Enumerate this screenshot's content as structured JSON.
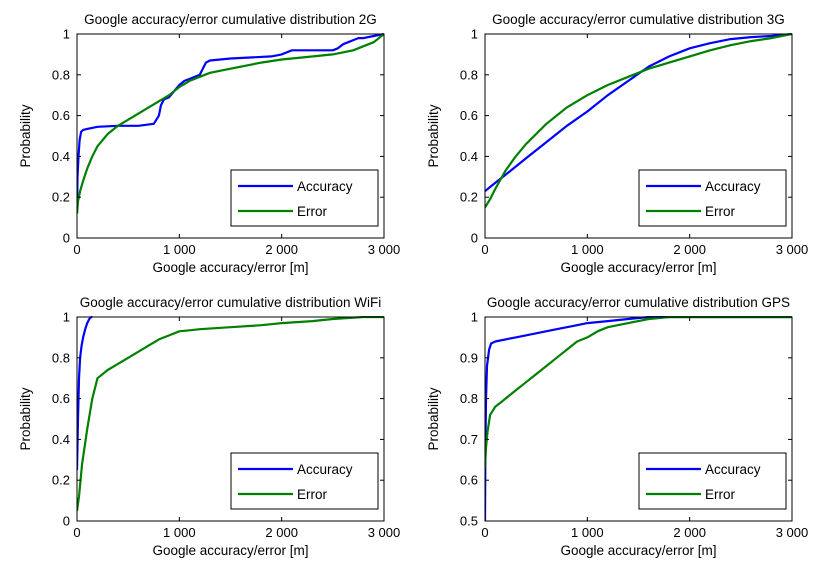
{
  "chart_data": [
    {
      "type": "line",
      "title": "Google accuracy/error cumulative distribution 2G",
      "xlabel": "Google accuracy/error [m]",
      "ylabel": "Probability",
      "xlim": [
        0,
        3000
      ],
      "ylim": [
        0,
        1
      ],
      "xticks": [
        0,
        1000,
        2000,
        3000
      ],
      "xtick_labels": [
        "0",
        "1 000",
        "2 000",
        "3 000"
      ],
      "yticks": [
        0,
        0.2,
        0.4,
        0.6,
        0.8,
        1
      ],
      "ytick_labels": [
        "0",
        "0.2",
        "0.4",
        "0.6",
        "0.8",
        "1"
      ],
      "legend_position": "bottom-right",
      "grid": false,
      "series": [
        {
          "name": "Accuracy",
          "color": "#0000ff",
          "x": [
            0,
            5,
            15,
            25,
            40,
            60,
            100,
            200,
            400,
            600,
            750,
            800,
            820,
            850,
            900,
            1000,
            1050,
            1100,
            1200,
            1260,
            1300,
            1500,
            1900,
            2000,
            2100,
            2500,
            2550,
            2600,
            2650,
            2700,
            2750,
            2800,
            2900,
            3000
          ],
          "y": [
            0.12,
            0.3,
            0.4,
            0.48,
            0.52,
            0.53,
            0.535,
            0.545,
            0.55,
            0.55,
            0.56,
            0.6,
            0.65,
            0.68,
            0.69,
            0.75,
            0.77,
            0.78,
            0.8,
            0.86,
            0.87,
            0.88,
            0.89,
            0.9,
            0.92,
            0.92,
            0.93,
            0.95,
            0.96,
            0.97,
            0.98,
            0.98,
            0.99,
            1.0
          ]
        },
        {
          "name": "Error",
          "color": "#008000",
          "x": [
            0,
            10,
            30,
            60,
            100,
            150,
            200,
            300,
            400,
            500,
            700,
            900,
            1000,
            1100,
            1200,
            1300,
            1500,
            1800,
            2000,
            2200,
            2500,
            2700,
            2800,
            2900,
            3000
          ],
          "y": [
            0.12,
            0.18,
            0.23,
            0.28,
            0.34,
            0.4,
            0.45,
            0.51,
            0.55,
            0.58,
            0.64,
            0.7,
            0.74,
            0.77,
            0.79,
            0.81,
            0.83,
            0.86,
            0.875,
            0.885,
            0.9,
            0.92,
            0.94,
            0.96,
            1.0
          ]
        }
      ]
    },
    {
      "type": "line",
      "title": "Google accuracy/error cumulative distribution 3G",
      "xlabel": "Google accuracy/error [m]",
      "ylabel": "Probability",
      "xlim": [
        0,
        3000
      ],
      "ylim": [
        0,
        1
      ],
      "xticks": [
        0,
        1000,
        2000,
        3000
      ],
      "xtick_labels": [
        "0",
        "1 000",
        "2 000",
        "3 000"
      ],
      "yticks": [
        0,
        0.2,
        0.4,
        0.6,
        0.8,
        1
      ],
      "ytick_labels": [
        "0",
        "0.2",
        "0.4",
        "0.6",
        "0.8",
        "1"
      ],
      "legend_position": "bottom-right",
      "grid": false,
      "series": [
        {
          "name": "Accuracy",
          "color": "#0000ff",
          "x": [
            0,
            100,
            200,
            400,
            600,
            800,
            1000,
            1200,
            1400,
            1600,
            1800,
            2000,
            2200,
            2400,
            2600,
            2800,
            3000
          ],
          "y": [
            0.23,
            0.27,
            0.31,
            0.39,
            0.47,
            0.55,
            0.62,
            0.7,
            0.77,
            0.84,
            0.89,
            0.93,
            0.955,
            0.975,
            0.985,
            0.99,
            1.0
          ]
        },
        {
          "name": "Error",
          "color": "#008000",
          "x": [
            0,
            50,
            100,
            200,
            300,
            400,
            600,
            800,
            1000,
            1200,
            1400,
            1600,
            1800,
            2000,
            2200,
            2400,
            2600,
            2800,
            3000
          ],
          "y": [
            0.15,
            0.19,
            0.24,
            0.33,
            0.4,
            0.46,
            0.56,
            0.64,
            0.7,
            0.75,
            0.79,
            0.83,
            0.86,
            0.89,
            0.92,
            0.945,
            0.965,
            0.98,
            1.0
          ]
        }
      ]
    },
    {
      "type": "line",
      "title": "Google accuracy/error cumulative distribution WiFi",
      "xlabel": "Google accuracy/error [m]",
      "ylabel": "Probability",
      "xlim": [
        0,
        3000
      ],
      "ylim": [
        0,
        1
      ],
      "xticks": [
        0,
        1000,
        2000,
        3000
      ],
      "xtick_labels": [
        "0",
        "1 000",
        "2 000",
        "3 000"
      ],
      "yticks": [
        0,
        0.2,
        0.4,
        0.6,
        0.8,
        1
      ],
      "ytick_labels": [
        "0",
        "0.2",
        "0.4",
        "0.6",
        "0.8",
        "1"
      ],
      "legend_position": "bottom-right",
      "grid": false,
      "series": [
        {
          "name": "Accuracy",
          "color": "#0000ff",
          "x": [
            0,
            10,
            20,
            30,
            45,
            60,
            80,
            100,
            120,
            140,
            150
          ],
          "y": [
            0.25,
            0.5,
            0.7,
            0.8,
            0.86,
            0.9,
            0.94,
            0.97,
            0.99,
            1.0,
            1.0
          ]
        },
        {
          "name": "Error",
          "color": "#008000",
          "x": [
            0,
            20,
            50,
            100,
            150,
            200,
            250,
            300,
            400,
            500,
            600,
            700,
            800,
            900,
            1000,
            1100,
            1200,
            1500,
            1800,
            2000,
            2300,
            2500,
            2800,
            3000
          ],
          "y": [
            0.05,
            0.12,
            0.28,
            0.45,
            0.6,
            0.7,
            0.72,
            0.74,
            0.77,
            0.8,
            0.83,
            0.86,
            0.89,
            0.91,
            0.93,
            0.935,
            0.94,
            0.95,
            0.96,
            0.97,
            0.98,
            0.99,
            1.0,
            1.0
          ]
        }
      ]
    },
    {
      "type": "line",
      "title": "Google accuracy/error cumulative distribution GPS",
      "xlabel": "Google accuracy/error [m]",
      "ylabel": "Probability",
      "xlim": [
        0,
        3000
      ],
      "ylim": [
        0.5,
        1
      ],
      "xticks": [
        0,
        1000,
        2000,
        3000
      ],
      "xtick_labels": [
        "0",
        "1 000",
        "2 000",
        "3 000"
      ],
      "yticks": [
        0.5,
        0.6,
        0.7,
        0.8,
        0.9,
        1
      ],
      "ytick_labels": [
        "0.5",
        "0.6",
        "0.7",
        "0.8",
        "0.9",
        "1"
      ],
      "legend_position": "bottom-right",
      "grid": false,
      "series": [
        {
          "name": "Accuracy",
          "color": "#0000ff",
          "x": [
            0,
            2,
            5,
            10,
            20,
            40,
            60,
            100,
            200,
            300,
            500,
            700,
            800,
            900,
            1000,
            1200,
            1400,
            1600,
            2000,
            3000
          ],
          "y": [
            0.5,
            0.6,
            0.7,
            0.8,
            0.88,
            0.92,
            0.935,
            0.94,
            0.945,
            0.95,
            0.96,
            0.97,
            0.975,
            0.98,
            0.985,
            0.99,
            0.995,
            1.0,
            1.0,
            1.0
          ]
        },
        {
          "name": "Error",
          "color": "#008000",
          "x": [
            0,
            10,
            25,
            50,
            100,
            150,
            200,
            300,
            400,
            500,
            600,
            700,
            800,
            900,
            1000,
            1100,
            1200,
            1400,
            1600,
            1800,
            2000,
            3000
          ],
          "y": [
            0.63,
            0.68,
            0.72,
            0.76,
            0.78,
            0.79,
            0.8,
            0.82,
            0.84,
            0.86,
            0.88,
            0.9,
            0.92,
            0.94,
            0.95,
            0.965,
            0.975,
            0.985,
            0.995,
            1.0,
            1.0,
            1.0
          ]
        }
      ]
    }
  ]
}
